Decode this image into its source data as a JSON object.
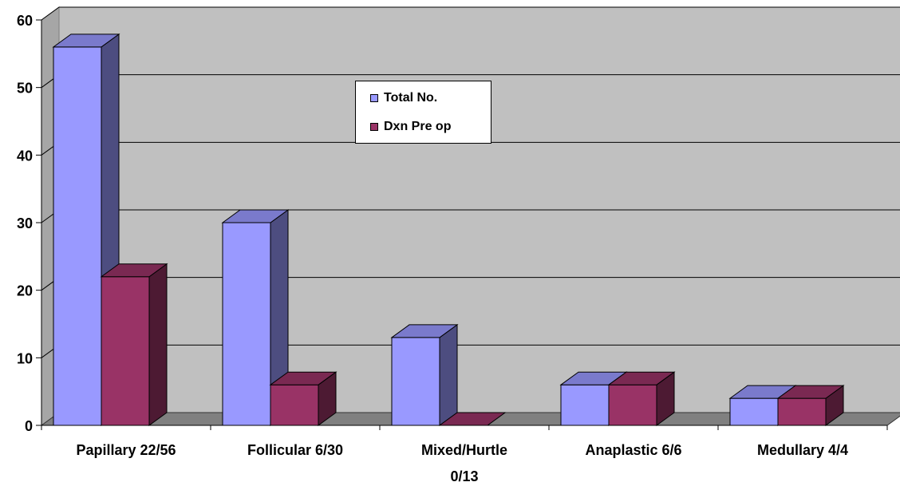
{
  "chart_data": {
    "type": "bar",
    "categories": [
      "Papillary 22/56",
      "Follicular 6/30",
      "Mixed/Hurtle 0/13",
      "Anaplastic 6/6",
      "Medullary 4/4"
    ],
    "category_lines": [
      [
        "Papillary 22/56"
      ],
      [
        "Follicular 6/30"
      ],
      [
        "Mixed/Hurtle",
        "0/13"
      ],
      [
        "Anaplastic 6/6"
      ],
      [
        "Medullary 4/4"
      ]
    ],
    "series": [
      {
        "name": "Total No.",
        "values": [
          56,
          30,
          13,
          6,
          4
        ],
        "color": "#9999ff",
        "side_color": "#4d4d80",
        "top_color": "#7a7acc"
      },
      {
        "name": "Dxn Pre op",
        "values": [
          22,
          6,
          0,
          6,
          4
        ],
        "color": "#993366",
        "side_color": "#4d1a33",
        "top_color": "#7a2952"
      }
    ],
    "ylim": [
      0,
      60
    ],
    "yticks": [
      "0",
      "10",
      "20",
      "30",
      "40",
      "50",
      "60"
    ],
    "grid": true,
    "legend_placement": "top-center",
    "title": "",
    "xlabel": "",
    "ylabel": "",
    "colors": {
      "wall": "#c0c0c0",
      "floor": "#808080",
      "background": "#ffffff"
    }
  }
}
